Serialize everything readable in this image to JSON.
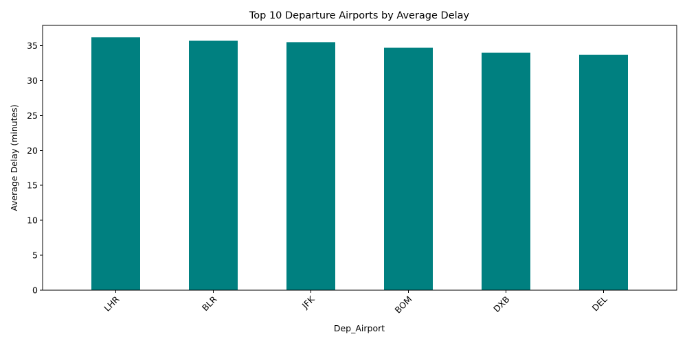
{
  "chart_data": {
    "type": "bar",
    "title": "Top 10 Departure Airports by Average Delay",
    "xlabel": "Dep_Airport",
    "ylabel": "Average Delay (minutes)",
    "categories": [
      "LHR",
      "BLR",
      "JFK",
      "BOM",
      "DXB",
      "DEL"
    ],
    "values": [
      36.2,
      35.7,
      35.5,
      34.7,
      34.0,
      33.7
    ],
    "ylim": [
      0,
      37.9
    ],
    "yticks": [
      0,
      5,
      10,
      15,
      20,
      25,
      30,
      35
    ],
    "xtick_rotation": 45,
    "bar_color": "#008080",
    "grid": false,
    "legend": "none"
  }
}
